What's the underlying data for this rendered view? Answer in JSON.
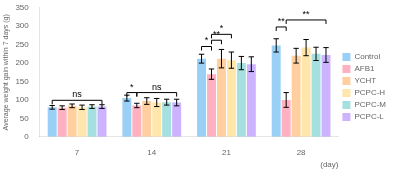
{
  "chart_data": {
    "type": "bar",
    "categories": [
      "7",
      "14",
      "21",
      "28"
    ],
    "series": [
      {
        "name": "Control",
        "values": [
          80,
          105,
          212,
          248
        ],
        "errors": [
          5,
          8,
          12,
          18
        ]
      },
      {
        "name": "AFB1",
        "values": [
          79,
          85,
          170,
          100
        ],
        "errors": [
          5,
          6,
          14,
          20
        ]
      },
      {
        "name": "YCHT",
        "values": [
          84,
          97,
          212,
          220
        ],
        "errors": [
          5,
          9,
          25,
          20
        ]
      },
      {
        "name": "PCPC-H",
        "values": [
          80,
          93,
          208,
          242
        ],
        "errors": [
          6,
          11,
          22,
          22
        ]
      },
      {
        "name": "PCPC-M",
        "values": [
          82,
          94,
          200,
          225
        ],
        "errors": [
          5,
          8,
          18,
          18
        ]
      },
      {
        "name": "PCPC-L",
        "values": [
          82,
          93,
          197,
          222
        ],
        "errors": [
          5,
          9,
          20,
          20
        ]
      }
    ],
    "xlabel": "(day)",
    "ylabel": "Average weight gain within 7 days (g)",
    "ylim": [
      0,
      350
    ],
    "yticks": [
      0,
      50,
      100,
      150,
      200,
      250,
      300,
      350
    ],
    "grid": false,
    "legend": "right",
    "annotations": [
      {
        "text": "ns",
        "category": "7",
        "from": "Control",
        "to": "PCPC-L",
        "y": 99
      },
      {
        "text": "*",
        "category": "14",
        "from": "Control",
        "to": "AFB1",
        "y": 120
      },
      {
        "text": "ns",
        "category": "14",
        "from": "AFB1",
        "to": "PCPC-L",
        "y": 120
      },
      {
        "text": "*",
        "category": "21",
        "from": "Control",
        "to": "AFB1",
        "y": 245
      },
      {
        "text": "**",
        "category": "21",
        "from": "AFB1",
        "to": "YCHT",
        "y": 262
      },
      {
        "text": "*",
        "category": "21",
        "from": "AFB1",
        "to": "PCPC-H",
        "y": 278
      },
      {
        "text": "**",
        "category": "28",
        "from": "AFB1",
        "to": "Control",
        "y": 298
      },
      {
        "text": "**",
        "category": "28",
        "from": "AFB1",
        "to": "PCPC-L",
        "y": 317
      }
    ]
  }
}
